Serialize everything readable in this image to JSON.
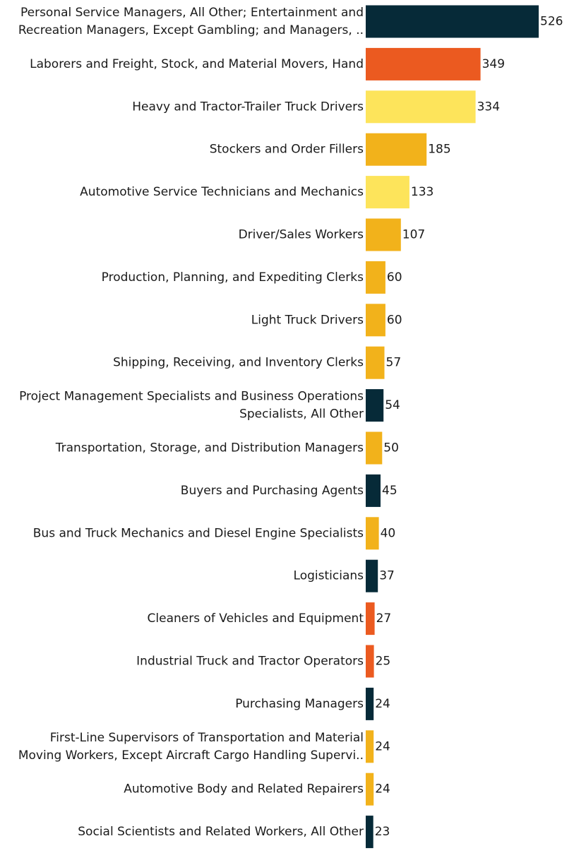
{
  "colors": {
    "navy": "#062a38",
    "red_orange": "#eb5a20",
    "yellow": "#fde45b",
    "amber": "#f2b21b"
  },
  "chart_data": {
    "type": "bar",
    "orientation": "horizontal",
    "title": "",
    "xlabel": "",
    "ylabel": "",
    "grid": false,
    "xlim": [
      0,
      526
    ],
    "categories": [
      "Personal Service Managers, All Other; Entertainment and Recreation Managers, Except Gambling; and Managers, ..",
      "Laborers and Freight, Stock, and Material Movers, Hand",
      "Heavy and Tractor-Trailer Truck Drivers",
      "Stockers and Order Fillers",
      "Automotive Service Technicians and Mechanics",
      "Driver/Sales Workers",
      "Production, Planning, and Expediting Clerks",
      "Light Truck Drivers",
      "Shipping, Receiving, and Inventory Clerks",
      "Project Management Specialists and Business Operations Specialists, All Other",
      "Transportation, Storage, and Distribution Managers",
      "Buyers and Purchasing Agents",
      "Bus and Truck Mechanics and Diesel Engine Specialists",
      "Logisticians",
      "Cleaners of Vehicles and Equipment",
      "Industrial Truck and Tractor Operators",
      "Purchasing Managers",
      "First-Line Supervisors of Transportation and Material Moving Workers, Except Aircraft Cargo Handling Supervi..",
      "Automotive Body and Related Repairers",
      "Social Scientists and Related Workers, All Other"
    ],
    "category_lines": [
      [
        "Personal Service Managers, All Other; Entertainment and",
        "Recreation Managers, Except Gambling; and Managers, .."
      ],
      [
        "Laborers and Freight, Stock, and Material Movers, Hand"
      ],
      [
        "Heavy and Tractor-Trailer Truck Drivers"
      ],
      [
        "Stockers and Order Fillers"
      ],
      [
        "Automotive Service Technicians and Mechanics"
      ],
      [
        "Driver/Sales Workers"
      ],
      [
        "Production, Planning, and Expediting Clerks"
      ],
      [
        "Light Truck Drivers"
      ],
      [
        "Shipping, Receiving, and Inventory Clerks"
      ],
      [
        "Project Management Specialists and Business Operations",
        "Specialists, All Other"
      ],
      [
        "Transportation, Storage, and Distribution Managers"
      ],
      [
        "Buyers and Purchasing Agents"
      ],
      [
        "Bus and Truck Mechanics and Diesel Engine Specialists"
      ],
      [
        "Logisticians"
      ],
      [
        "Cleaners of Vehicles and Equipment"
      ],
      [
        "Industrial Truck and Tractor Operators"
      ],
      [
        "Purchasing Managers"
      ],
      [
        "First-Line Supervisors of Transportation and Material",
        "Moving Workers, Except Aircraft Cargo Handling Supervi.."
      ],
      [
        "Automotive Body and Related Repairers"
      ],
      [
        "Social Scientists and Related Workers, All Other"
      ]
    ],
    "values": [
      526,
      349,
      334,
      185,
      133,
      107,
      60,
      60,
      57,
      54,
      50,
      45,
      40,
      37,
      27,
      25,
      24,
      24,
      24,
      23
    ],
    "value_labels": [
      "526",
      "349",
      "334",
      "185",
      "133",
      "107",
      "60",
      "60",
      "57",
      "54",
      "50",
      "45",
      "40",
      "37",
      "27",
      "25",
      "24",
      "24",
      "24",
      "23"
    ],
    "bar_colors": [
      "#062a38",
      "#eb5a20",
      "#fde45b",
      "#f2b21b",
      "#fde45b",
      "#f2b21b",
      "#f2b21b",
      "#f2b21b",
      "#f2b21b",
      "#062a38",
      "#f2b21b",
      "#062a38",
      "#f2b21b",
      "#062a38",
      "#eb5a20",
      "#eb5a20",
      "#062a38",
      "#f2b21b",
      "#f2b21b",
      "#062a38"
    ]
  }
}
